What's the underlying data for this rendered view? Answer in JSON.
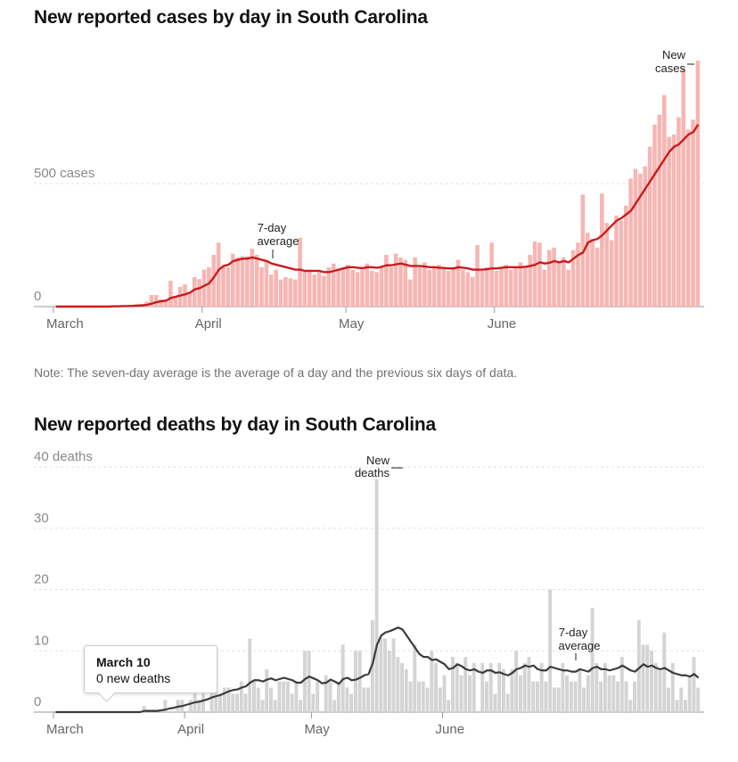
{
  "cases_chart": {
    "title": "New reported cases by day in South Carolina",
    "note": "Note: The seven-day average is the average of a day and the previous six days of data.",
    "annotation_bar": [
      "New",
      "cases"
    ],
    "annotation_avg": [
      "7-day",
      "average"
    ]
  },
  "deaths_chart": {
    "title": "New reported deaths by day in South Carolina",
    "annotation_bar": [
      "New",
      "deaths"
    ],
    "annotation_avg": [
      "7-day",
      "average"
    ]
  },
  "tooltip": {
    "date": "March 10",
    "value": "0 new deaths"
  },
  "colors": {
    "case_bar": "#f6b6b3",
    "case_line": "#c91c1c",
    "death_bar": "#d4d4d4",
    "death_line": "#3c3c3c"
  },
  "chart_data": [
    {
      "type": "bar",
      "title": "New reported cases by day in South Carolina",
      "start_date": "March 1",
      "x_ticks": [
        "March",
        "April",
        "May",
        "June"
      ],
      "y_ticks": [
        {
          "value": 0,
          "label": "0"
        },
        {
          "value": 500,
          "label": "500 cases"
        }
      ],
      "ylim": [
        0,
        1000
      ],
      "series": [
        {
          "name": "New cases",
          "values": [
            0,
            0,
            0,
            0,
            0,
            0,
            0,
            0,
            0,
            0,
            0,
            1,
            2,
            3,
            3,
            4,
            6,
            10,
            10,
            20,
            47,
            47,
            30,
            30,
            105,
            40,
            80,
            90,
            55,
            120,
            112,
            150,
            160,
            210,
            260,
            160,
            160,
            215,
            200,
            205,
            205,
            235,
            210,
            160,
            190,
            130,
            150,
            110,
            120,
            115,
            110,
            280,
            150,
            150,
            130,
            140,
            125,
            160,
            175,
            155,
            160,
            170,
            150,
            140,
            150,
            175,
            145,
            140,
            160,
            210,
            160,
            215,
            200,
            190,
            110,
            200,
            160,
            180,
            150,
            160,
            170,
            155,
            145,
            160,
            190,
            150,
            140,
            120,
            250,
            145,
            160,
            260,
            145,
            160,
            170,
            150,
            160,
            180,
            160,
            210,
            265,
            260,
            150,
            230,
            240,
            180,
            200,
            150,
            230,
            260,
            455,
            300,
            275,
            240,
            460,
            340,
            270,
            370,
            350,
            410,
            520,
            560,
            540,
            570,
            650,
            740,
            780,
            860,
            690,
            700,
            770,
            970,
            720,
            760,
            1000
          ]
        },
        {
          "name": "7-day average",
          "values": [
            0,
            0,
            0,
            0,
            0,
            0,
            0,
            0,
            0,
            0,
            0,
            0,
            1,
            1,
            2,
            2,
            3,
            4,
            5,
            7,
            12,
            18,
            22,
            24,
            35,
            40,
            45,
            50,
            57,
            70,
            75,
            85,
            95,
            120,
            150,
            165,
            170,
            185,
            190,
            195,
            195,
            200,
            195,
            190,
            185,
            175,
            170,
            165,
            160,
            155,
            150,
            150,
            145,
            145,
            145,
            145,
            140,
            140,
            145,
            150,
            155,
            160,
            160,
            158,
            156,
            160,
            160,
            158,
            162,
            168,
            168,
            172,
            175,
            170,
            165,
            165,
            165,
            163,
            160,
            160,
            158,
            157,
            155,
            155,
            160,
            158,
            155,
            150,
            150,
            150,
            152,
            155,
            155,
            158,
            160,
            160,
            160,
            160,
            162,
            165,
            170,
            180,
            175,
            178,
            185,
            180,
            185,
            180,
            195,
            210,
            220,
            260,
            270,
            275,
            290,
            310,
            330,
            350,
            360,
            375,
            390,
            420,
            450,
            480,
            510,
            540,
            570,
            600,
            630,
            650,
            660,
            680,
            700,
            710,
            740
          ]
        }
      ]
    },
    {
      "type": "bar",
      "title": "New reported deaths by day in South Carolina",
      "start_date": "March 1",
      "x_ticks": [
        "March",
        "April",
        "May",
        "June"
      ],
      "y_ticks": [
        {
          "value": 0,
          "label": "0"
        },
        {
          "value": 10,
          "label": "10"
        },
        {
          "value": 20,
          "label": "20"
        },
        {
          "value": 30,
          "label": "30"
        },
        {
          "value": 40,
          "label": "40 deaths"
        }
      ],
      "ylim": [
        0,
        40
      ],
      "series": [
        {
          "name": "New deaths",
          "values": [
            0,
            0,
            0,
            0,
            0,
            0,
            0,
            0,
            0,
            0,
            0,
            0,
            0,
            0,
            0,
            0,
            0,
            0,
            0,
            0,
            0,
            1,
            0,
            0,
            0,
            0,
            2,
            0,
            0,
            2,
            2,
            0,
            2,
            3,
            2,
            3,
            0,
            4,
            4,
            3,
            4,
            4,
            3,
            3,
            5,
            3,
            12,
            5,
            4,
            2,
            7,
            4,
            2,
            5,
            5,
            5,
            3,
            5,
            2,
            10,
            10,
            3,
            5,
            0,
            6,
            5,
            2,
            5,
            11,
            4,
            3,
            10,
            10,
            4,
            4,
            15,
            38,
            12,
            12,
            10,
            12,
            9,
            8,
            7,
            5,
            11,
            5,
            5,
            4,
            10,
            8,
            4,
            6,
            2,
            9,
            8,
            6,
            9,
            6,
            8,
            0,
            8,
            5,
            8,
            3,
            8,
            7,
            3,
            7,
            10,
            6,
            8,
            9,
            5,
            5,
            8,
            5,
            20,
            4,
            4,
            8,
            6,
            5,
            5,
            7,
            4,
            6,
            17,
            8,
            5,
            8,
            6,
            6,
            5,
            9,
            5,
            2,
            5,
            15,
            11,
            11,
            10,
            8,
            7,
            13,
            4,
            8,
            2,
            4,
            2,
            6,
            9,
            4
          ]
        },
        {
          "name": "7-day average",
          "values": [
            0,
            0,
            0,
            0,
            0,
            0,
            0,
            0,
            0,
            0,
            0,
            0,
            0,
            0,
            0,
            0,
            0,
            0,
            0,
            0,
            0,
            0.2,
            0.2,
            0.2,
            0.2,
            0.3,
            0.4,
            0.6,
            0.7,
            0.9,
            1.0,
            1.2,
            1.4,
            1.6,
            1.7,
            1.9,
            2.1,
            2.4,
            2.6,
            2.8,
            3.1,
            3.4,
            3.6,
            3.7,
            4.0,
            4.2,
            4.8,
            5.2,
            5.2,
            5.0,
            5.3,
            5.5,
            5.2,
            5.4,
            5.6,
            5.4,
            5.2,
            4.8,
            4.8,
            5.4,
            5.8,
            5.5,
            5.2,
            4.7,
            4.8,
            5.3,
            5.0,
            4.6,
            5.4,
            5.6,
            5.2,
            5.3,
            5.6,
            6.0,
            6.2,
            8.0,
            11.0,
            12.5,
            13.0,
            13.2,
            13.5,
            13.8,
            13.5,
            12.5,
            11.5,
            10.5,
            9.5,
            9.0,
            9.0,
            8.5,
            8.6,
            8.2,
            7.8,
            7.0,
            7.2,
            7.8,
            7.5,
            7.0,
            6.8,
            7.0,
            6.6,
            6.4,
            6.8,
            6.8,
            6.4,
            6.5,
            6.2,
            6.0,
            6.4,
            7.0,
            7.2,
            7.6,
            7.4,
            7.6,
            7.0,
            6.8,
            6.8,
            7.4,
            7.2,
            7.0,
            6.8,
            6.8,
            6.6,
            6.6,
            7.0,
            6.8,
            6.6,
            7.2,
            7.4,
            7.0,
            7.0,
            6.8,
            7.0,
            7.2,
            7.6,
            7.2,
            6.8,
            6.6,
            7.2,
            7.8,
            7.4,
            7.6,
            7.2,
            7.0,
            7.2,
            6.8,
            6.4,
            6.2,
            6.0,
            6.0,
            5.8,
            6.2,
            5.6
          ]
        }
      ]
    }
  ]
}
